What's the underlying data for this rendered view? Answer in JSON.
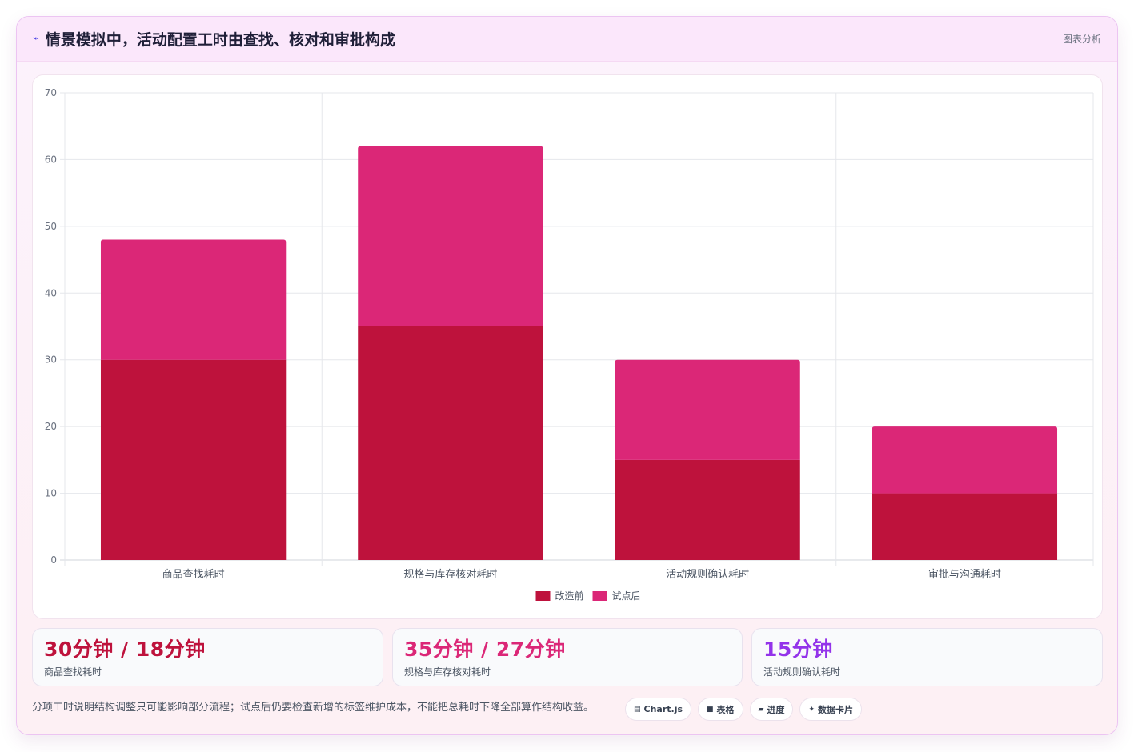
{
  "header": {
    "icon": "chart-line-icon",
    "title": "情景模拟中，活动配置工时由查找、核对和审批构成",
    "tag": "图表分析"
  },
  "chart_data": {
    "type": "bar",
    "stacked": true,
    "categories": [
      "商品查找耗时",
      "规格与库存核对耗时",
      "活动规则确认耗时",
      "审批与沟通耗时"
    ],
    "series": [
      {
        "name": "改造前",
        "color": "#be123c",
        "values": [
          30,
          35,
          15,
          10
        ]
      },
      {
        "name": "试点后",
        "color": "#db2777",
        "values": [
          18,
          27,
          15,
          10
        ]
      }
    ],
    "ylim": [
      0,
      70
    ],
    "yticks": [
      0,
      10,
      20,
      30,
      40,
      50,
      60,
      70
    ],
    "grid": true,
    "legend": "bottom"
  },
  "stats": [
    {
      "value": "30分钟 / 18分钟",
      "label": "商品查找耗时",
      "color": "#be123c"
    },
    {
      "value": "35分钟 / 27分钟",
      "label": "规格与库存核对耗时",
      "color": "#db2777"
    },
    {
      "value": "15分钟",
      "label": "活动规则确认耗时",
      "color": "#9333ea"
    }
  ],
  "footnote": "分项工时说明结构调整只可能影响部分流程；试点后仍要检查新增的标签维护成本，不能把总耗时下降全部算作结构收益。",
  "chips": [
    {
      "icon": "chart-icon",
      "glyph": "▤",
      "label": "Chart.js"
    },
    {
      "icon": "table-icon",
      "glyph": "■",
      "label": "表格"
    },
    {
      "icon": "progress-icon",
      "glyph": "▰",
      "label": "进度"
    },
    {
      "icon": "sparkle-icon",
      "glyph": "✦",
      "label": "数据卡片"
    }
  ]
}
